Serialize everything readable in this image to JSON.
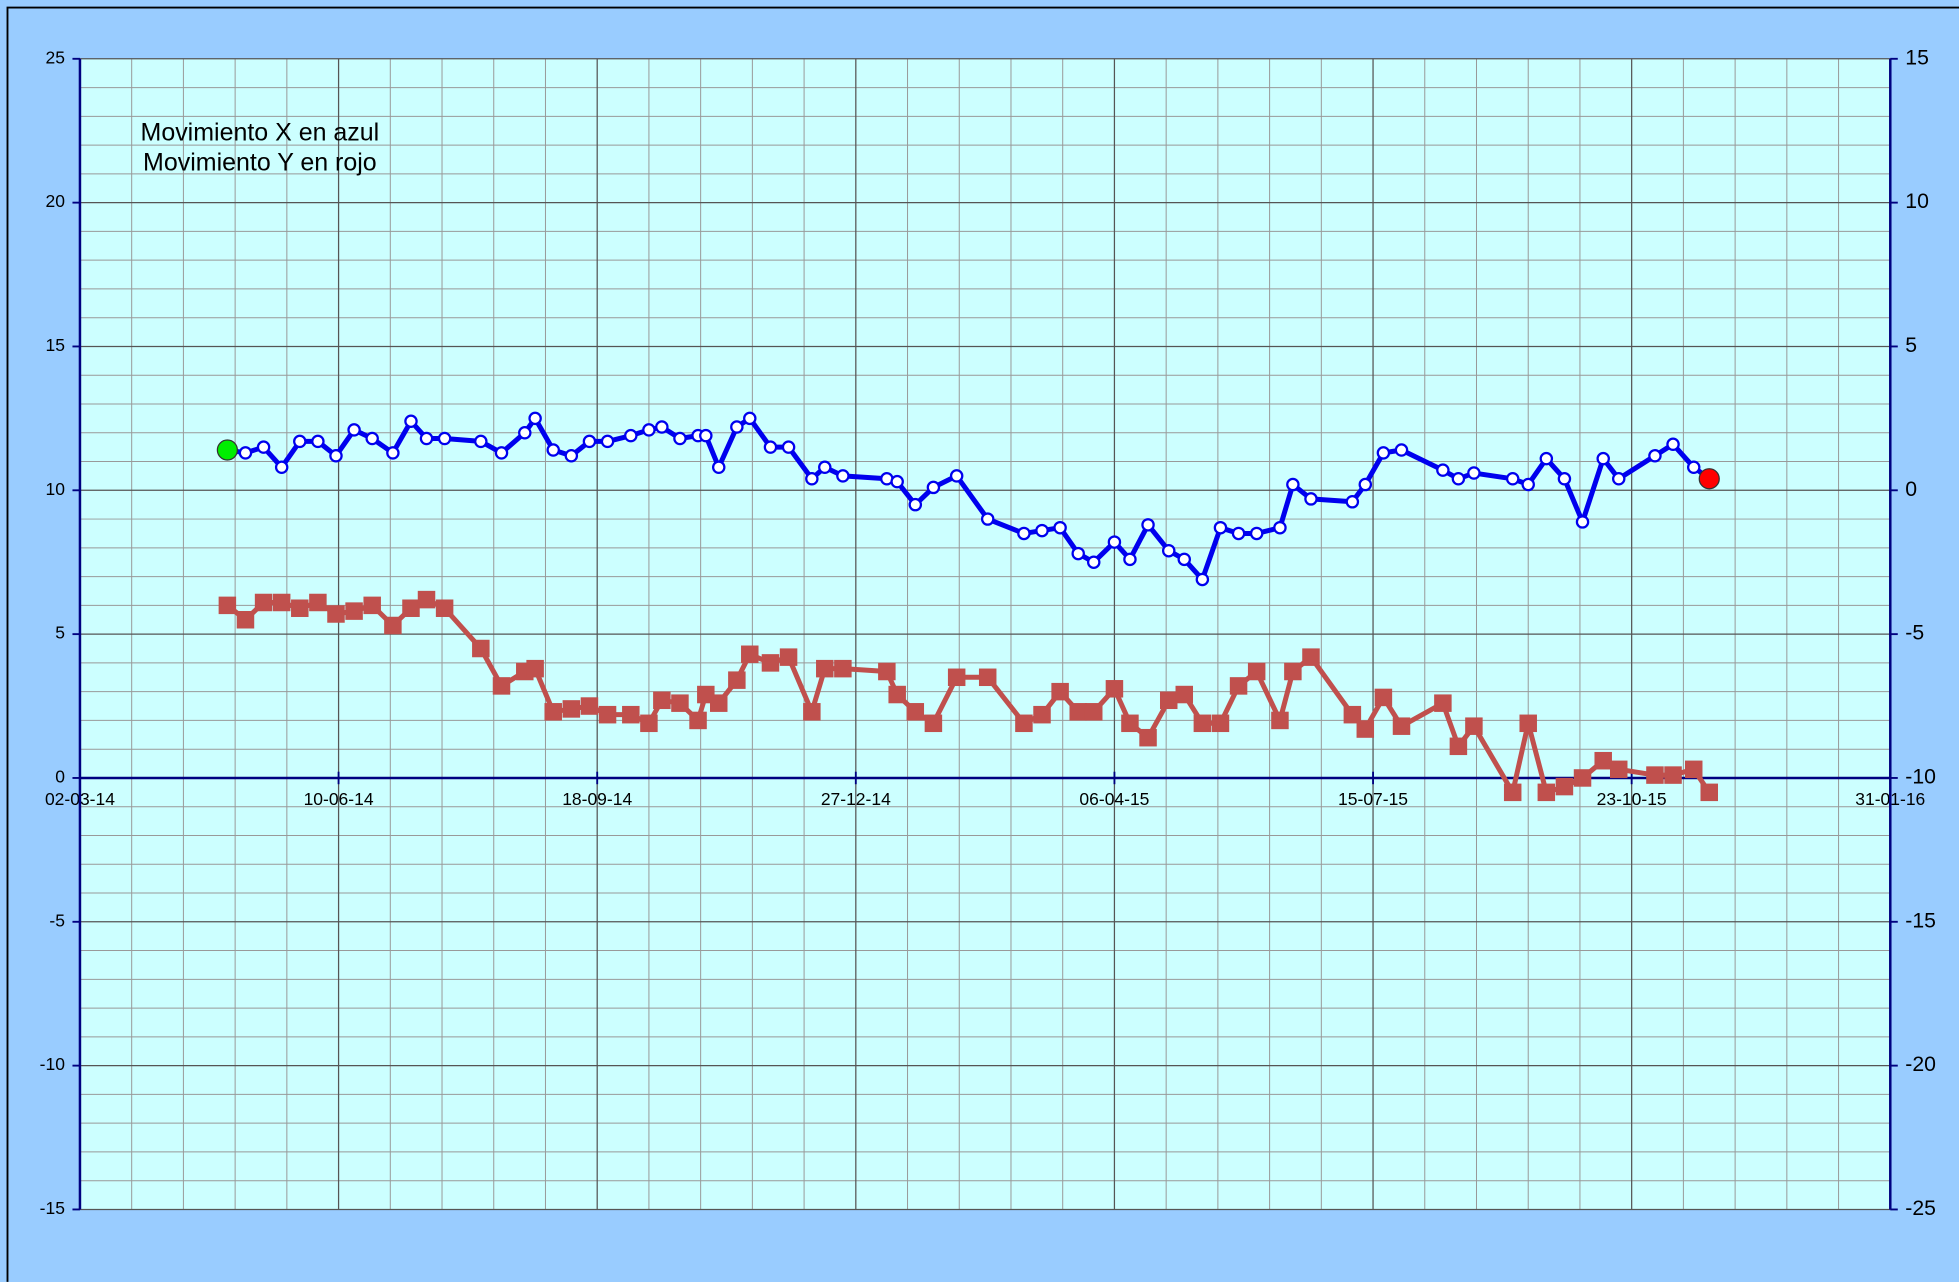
{
  "chart_data": {
    "type": "line",
    "annotations": [
      "Movimiento X en azul",
      "Movimiento Y en rojo"
    ],
    "x": [
      "2014-04-28",
      "2014-05-05",
      "2014-05-12",
      "2014-05-19",
      "2014-05-26",
      "2014-06-02",
      "2014-06-09",
      "2014-06-16",
      "2014-06-23",
      "2014-07-01",
      "2014-07-08",
      "2014-07-14",
      "2014-07-21",
      "2014-08-04",
      "2014-08-12",
      "2014-08-21",
      "2014-08-25",
      "2014-09-01",
      "2014-09-08",
      "2014-09-15",
      "2014-09-22",
      "2014-10-01",
      "2014-10-08",
      "2014-10-13",
      "2014-10-20",
      "2014-10-27",
      "2014-10-30",
      "2014-11-04",
      "2014-11-11",
      "2014-11-16",
      "2014-11-24",
      "2014-12-01",
      "2014-12-10",
      "2014-12-15",
      "2014-12-22",
      "2015-01-08",
      "2015-01-12",
      "2015-01-19",
      "2015-01-26",
      "2015-02-04",
      "2015-02-16",
      "2015-03-02",
      "2015-03-09",
      "2015-03-16",
      "2015-03-23",
      "2015-03-29",
      "2015-04-06",
      "2015-04-12",
      "2015-04-19",
      "2015-04-27",
      "2015-05-03",
      "2015-05-10",
      "2015-05-17",
      "2015-05-24",
      "2015-05-31",
      "2015-06-09",
      "2015-06-14",
      "2015-06-21",
      "2015-07-07",
      "2015-07-12",
      "2015-07-19",
      "2015-07-26",
      "2015-08-11",
      "2015-08-17",
      "2015-08-23",
      "2015-09-07",
      "2015-09-13",
      "2015-09-20",
      "2015-09-27",
      "2015-10-04",
      "2015-10-12",
      "2015-10-18",
      "2015-11-01",
      "2015-11-08",
      "2015-11-16",
      "2015-11-22"
    ],
    "series": [
      {
        "color": "#0000ee",
        "marker": "circle",
        "values": [
          11.4,
          11.3,
          11.5,
          10.8,
          11.7,
          11.7,
          11.2,
          12.1,
          11.8,
          11.3,
          12.4,
          11.8,
          11.8,
          11.7,
          11.3,
          12.0,
          12.5,
          11.4,
          11.2,
          11.7,
          11.7,
          11.9,
          12.1,
          12.2,
          11.8,
          11.9,
          11.9,
          10.8,
          12.2,
          12.5,
          11.5,
          11.5,
          10.4,
          10.8,
          10.5,
          10.4,
          10.3,
          9.5,
          10.1,
          10.5,
          9.0,
          8.5,
          8.6,
          8.7,
          7.8,
          7.5,
          8.2,
          7.6,
          8.8,
          7.9,
          7.6,
          6.9,
          8.7,
          8.5,
          8.5,
          8.7,
          10.2,
          9.7,
          9.6,
          10.2,
          11.3,
          11.4,
          10.7,
          10.4,
          10.6,
          10.4,
          10.2,
          11.1,
          10.4,
          8.9,
          11.1,
          10.4,
          11.2,
          11.6,
          10.8,
          10.4
        ]
      },
      {
        "color": "#c0504d",
        "marker": "square",
        "values": [
          6.0,
          5.5,
          6.1,
          6.1,
          5.9,
          6.1,
          5.7,
          5.8,
          6.0,
          5.3,
          5.9,
          6.2,
          5.9,
          4.5,
          3.2,
          3.7,
          3.8,
          2.3,
          2.4,
          2.5,
          2.2,
          2.2,
          1.9,
          2.7,
          2.6,
          2.0,
          2.9,
          2.6,
          3.4,
          4.3,
          4.0,
          4.2,
          2.3,
          3.8,
          3.8,
          3.7,
          2.9,
          2.3,
          1.9,
          3.5,
          3.5,
          1.9,
          2.2,
          3.0,
          2.3,
          2.3,
          3.1,
          1.9,
          1.4,
          2.7,
          2.9,
          1.9,
          1.9,
          3.2,
          3.7,
          2.0,
          3.7,
          4.2,
          2.2,
          1.7,
          2.8,
          1.8,
          2.6,
          1.1,
          1.8,
          -0.5,
          1.9,
          -0.5,
          -0.3,
          0.0,
          0.6,
          0.3,
          0.1,
          0.1,
          0.3,
          -0.5
        ]
      }
    ],
    "first_point_color": "#00ee00",
    "last_point_color": "#ff0000",
    "xlim": [
      "2014-03-02",
      "2016-01-31"
    ],
    "xticks": [
      {
        "value": "2014-03-02",
        "label": "02-03-14"
      },
      {
        "value": "2014-06-10",
        "label": "10-06-14"
      },
      {
        "value": "2014-09-18",
        "label": "18-09-14"
      },
      {
        "value": "2014-12-27",
        "label": "27-12-14"
      },
      {
        "value": "2015-04-06",
        "label": "06-04-15"
      },
      {
        "value": "2015-07-15",
        "label": "15-07-15"
      },
      {
        "value": "2015-10-23",
        "label": "23-10-15"
      },
      {
        "value": "2016-01-31",
        "label": "31-01-16"
      }
    ],
    "ylim": [
      -15,
      25
    ],
    "yticks": [
      -15,
      -10,
      -5,
      0,
      5,
      10,
      15,
      20,
      25
    ],
    "y2lim": [
      -25,
      15
    ],
    "y2ticks": [
      -25,
      -20,
      -15,
      -10,
      -5,
      0,
      5,
      10,
      15
    ],
    "grid": true
  }
}
